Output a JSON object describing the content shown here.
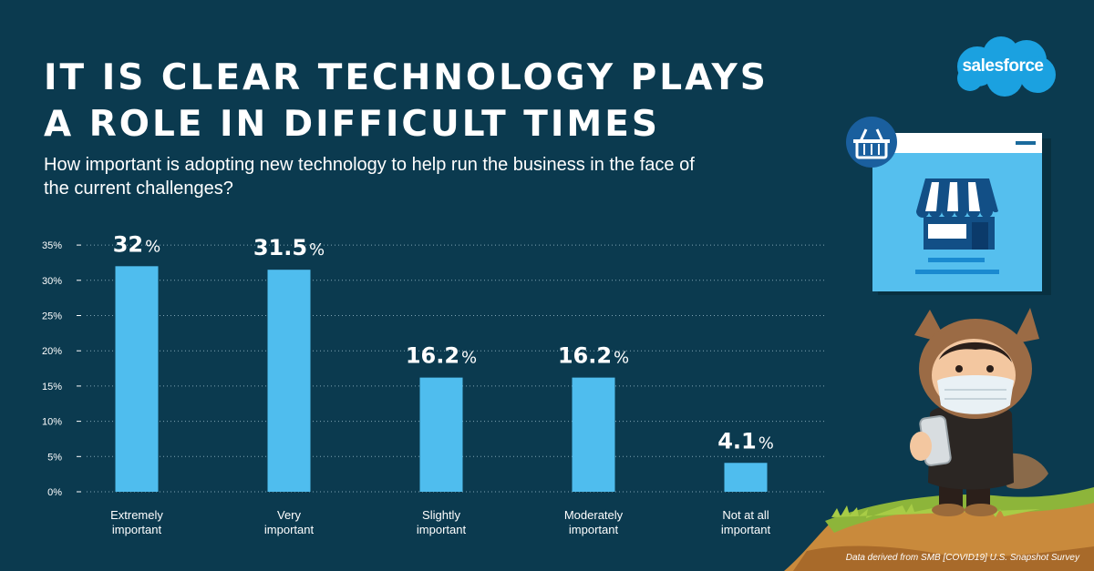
{
  "header": {
    "title_line1": "IT IS CLEAR TECHNOLOGY PLAYS",
    "title_line2": "A ROLE IN DIFFICULT TIMES",
    "subtitle": "How important is adopting new technology to help run the business in the face of the current challenges?"
  },
  "brand": {
    "logo_text": "salesforce"
  },
  "footer": {
    "source": "Data derived from SMB [COVID19] U.S. Snapshot Survey"
  },
  "colors": {
    "background": "#0b3a4f",
    "bar": "#4fbdee",
    "logo": "#1ba1e0"
  },
  "illustration": {
    "icons": [
      "basket-icon",
      "storefront-icon",
      "mascot-illustration",
      "cliff-illustration"
    ]
  },
  "chart_data": {
    "type": "bar",
    "categories": [
      [
        "Extremely",
        "important"
      ],
      [
        "Very",
        "important"
      ],
      [
        "Slightly",
        "important"
      ],
      [
        "Moderately",
        "important"
      ],
      [
        "Not at all",
        "important"
      ]
    ],
    "values": [
      32,
      31.5,
      16.2,
      16.2,
      4.1
    ],
    "value_labels": [
      "32",
      "31.5",
      "16.2",
      "16.2",
      "4.1"
    ],
    "value_suffix": "%",
    "yticks": [
      "0%",
      "5%",
      "10%",
      "15%",
      "20%",
      "25%",
      "30%",
      "35%"
    ],
    "ylim": [
      0,
      35
    ],
    "grid": true,
    "legend": "none"
  }
}
